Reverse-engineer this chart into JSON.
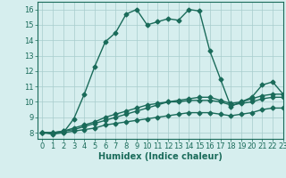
{
  "title": "",
  "xlabel": "Humidex (Indice chaleur)",
  "ylabel": "",
  "background_color": "#d6eeee",
  "line_color": "#1a6b5a",
  "grid_color": "#a8cccc",
  "xlim": [
    -0.5,
    23
  ],
  "ylim": [
    7.6,
    16.5
  ],
  "yticks": [
    8,
    9,
    10,
    11,
    12,
    13,
    14,
    15,
    16
  ],
  "xticks": [
    0,
    1,
    2,
    3,
    4,
    5,
    6,
    7,
    8,
    9,
    10,
    11,
    12,
    13,
    14,
    15,
    16,
    17,
    18,
    19,
    20,
    21,
    22,
    23
  ],
  "line1_x": [
    0,
    1,
    2,
    3,
    4,
    5,
    6,
    7,
    8,
    9,
    10,
    11,
    12,
    13,
    14,
    15,
    16,
    17,
    18,
    19,
    20,
    21,
    22,
    23
  ],
  "line1_y": [
    8.0,
    7.9,
    8.0,
    8.9,
    10.5,
    12.3,
    13.9,
    14.5,
    15.7,
    16.0,
    15.0,
    15.2,
    15.4,
    15.3,
    16.0,
    15.9,
    13.3,
    11.5,
    9.7,
    10.0,
    10.3,
    11.1,
    11.3,
    10.5
  ],
  "line2_x": [
    0,
    1,
    2,
    3,
    4,
    5,
    6,
    7,
    8,
    9,
    10,
    11,
    12,
    13,
    14,
    15,
    16,
    17,
    18,
    19,
    20,
    21,
    22,
    23
  ],
  "line2_y": [
    8.0,
    8.0,
    8.1,
    8.2,
    8.4,
    8.6,
    8.8,
    9.0,
    9.2,
    9.4,
    9.6,
    9.8,
    10.0,
    10.1,
    10.2,
    10.3,
    10.3,
    10.1,
    9.9,
    10.0,
    10.2,
    10.4,
    10.5,
    10.5
  ],
  "line3_x": [
    0,
    1,
    2,
    3,
    4,
    5,
    6,
    7,
    8,
    9,
    10,
    11,
    12,
    13,
    14,
    15,
    16,
    17,
    18,
    19,
    20,
    21,
    22,
    23
  ],
  "line3_y": [
    8.0,
    8.0,
    8.1,
    8.3,
    8.5,
    8.7,
    9.0,
    9.2,
    9.4,
    9.6,
    9.8,
    9.9,
    10.0,
    10.0,
    10.1,
    10.1,
    10.1,
    10.0,
    9.8,
    9.9,
    10.0,
    10.2,
    10.3,
    10.3
  ],
  "line4_x": [
    0,
    1,
    2,
    3,
    4,
    5,
    6,
    7,
    8,
    9,
    10,
    11,
    12,
    13,
    14,
    15,
    16,
    17,
    18,
    19,
    20,
    21,
    22,
    23
  ],
  "line4_y": [
    8.0,
    8.0,
    8.0,
    8.1,
    8.2,
    8.3,
    8.5,
    8.6,
    8.7,
    8.8,
    8.9,
    9.0,
    9.1,
    9.2,
    9.3,
    9.3,
    9.3,
    9.2,
    9.1,
    9.2,
    9.3,
    9.5,
    9.6,
    9.6
  ],
  "marker": "D",
  "markersize": 2.5,
  "linewidth": 1.0,
  "tick_fontsize": 6,
  "xlabel_fontsize": 7
}
